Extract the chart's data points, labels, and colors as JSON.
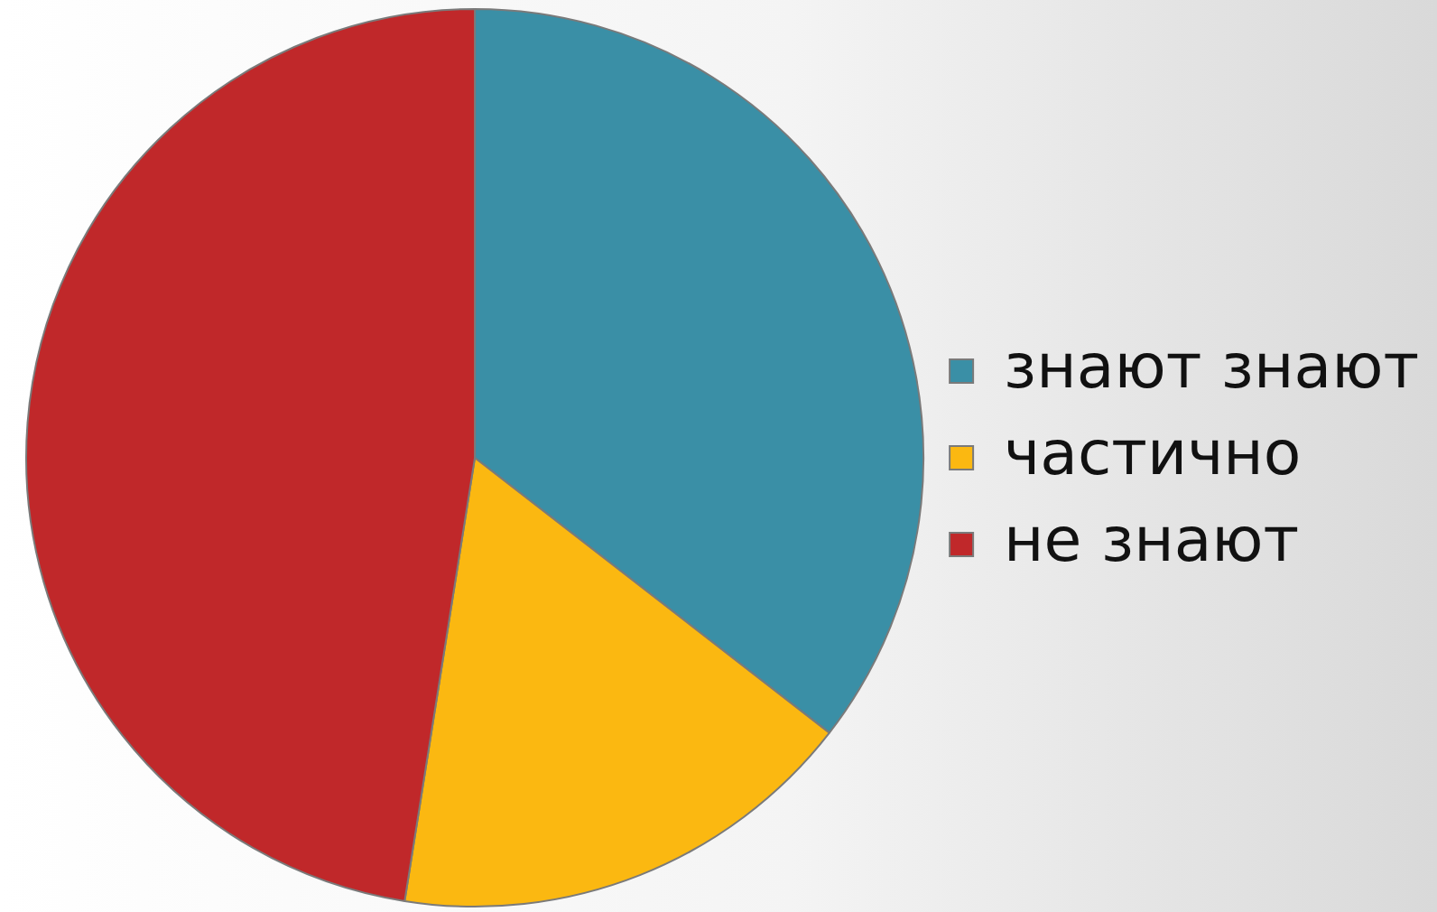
{
  "chart_data": {
    "type": "pie",
    "categories": [
      "знают знают",
      "частично",
      "не знают"
    ],
    "values": [
      35.5,
      17,
      47.5
    ],
    "colors": [
      "#3a8fa6",
      "#fbb811",
      "#c0282a"
    ],
    "legend": "right"
  }
}
